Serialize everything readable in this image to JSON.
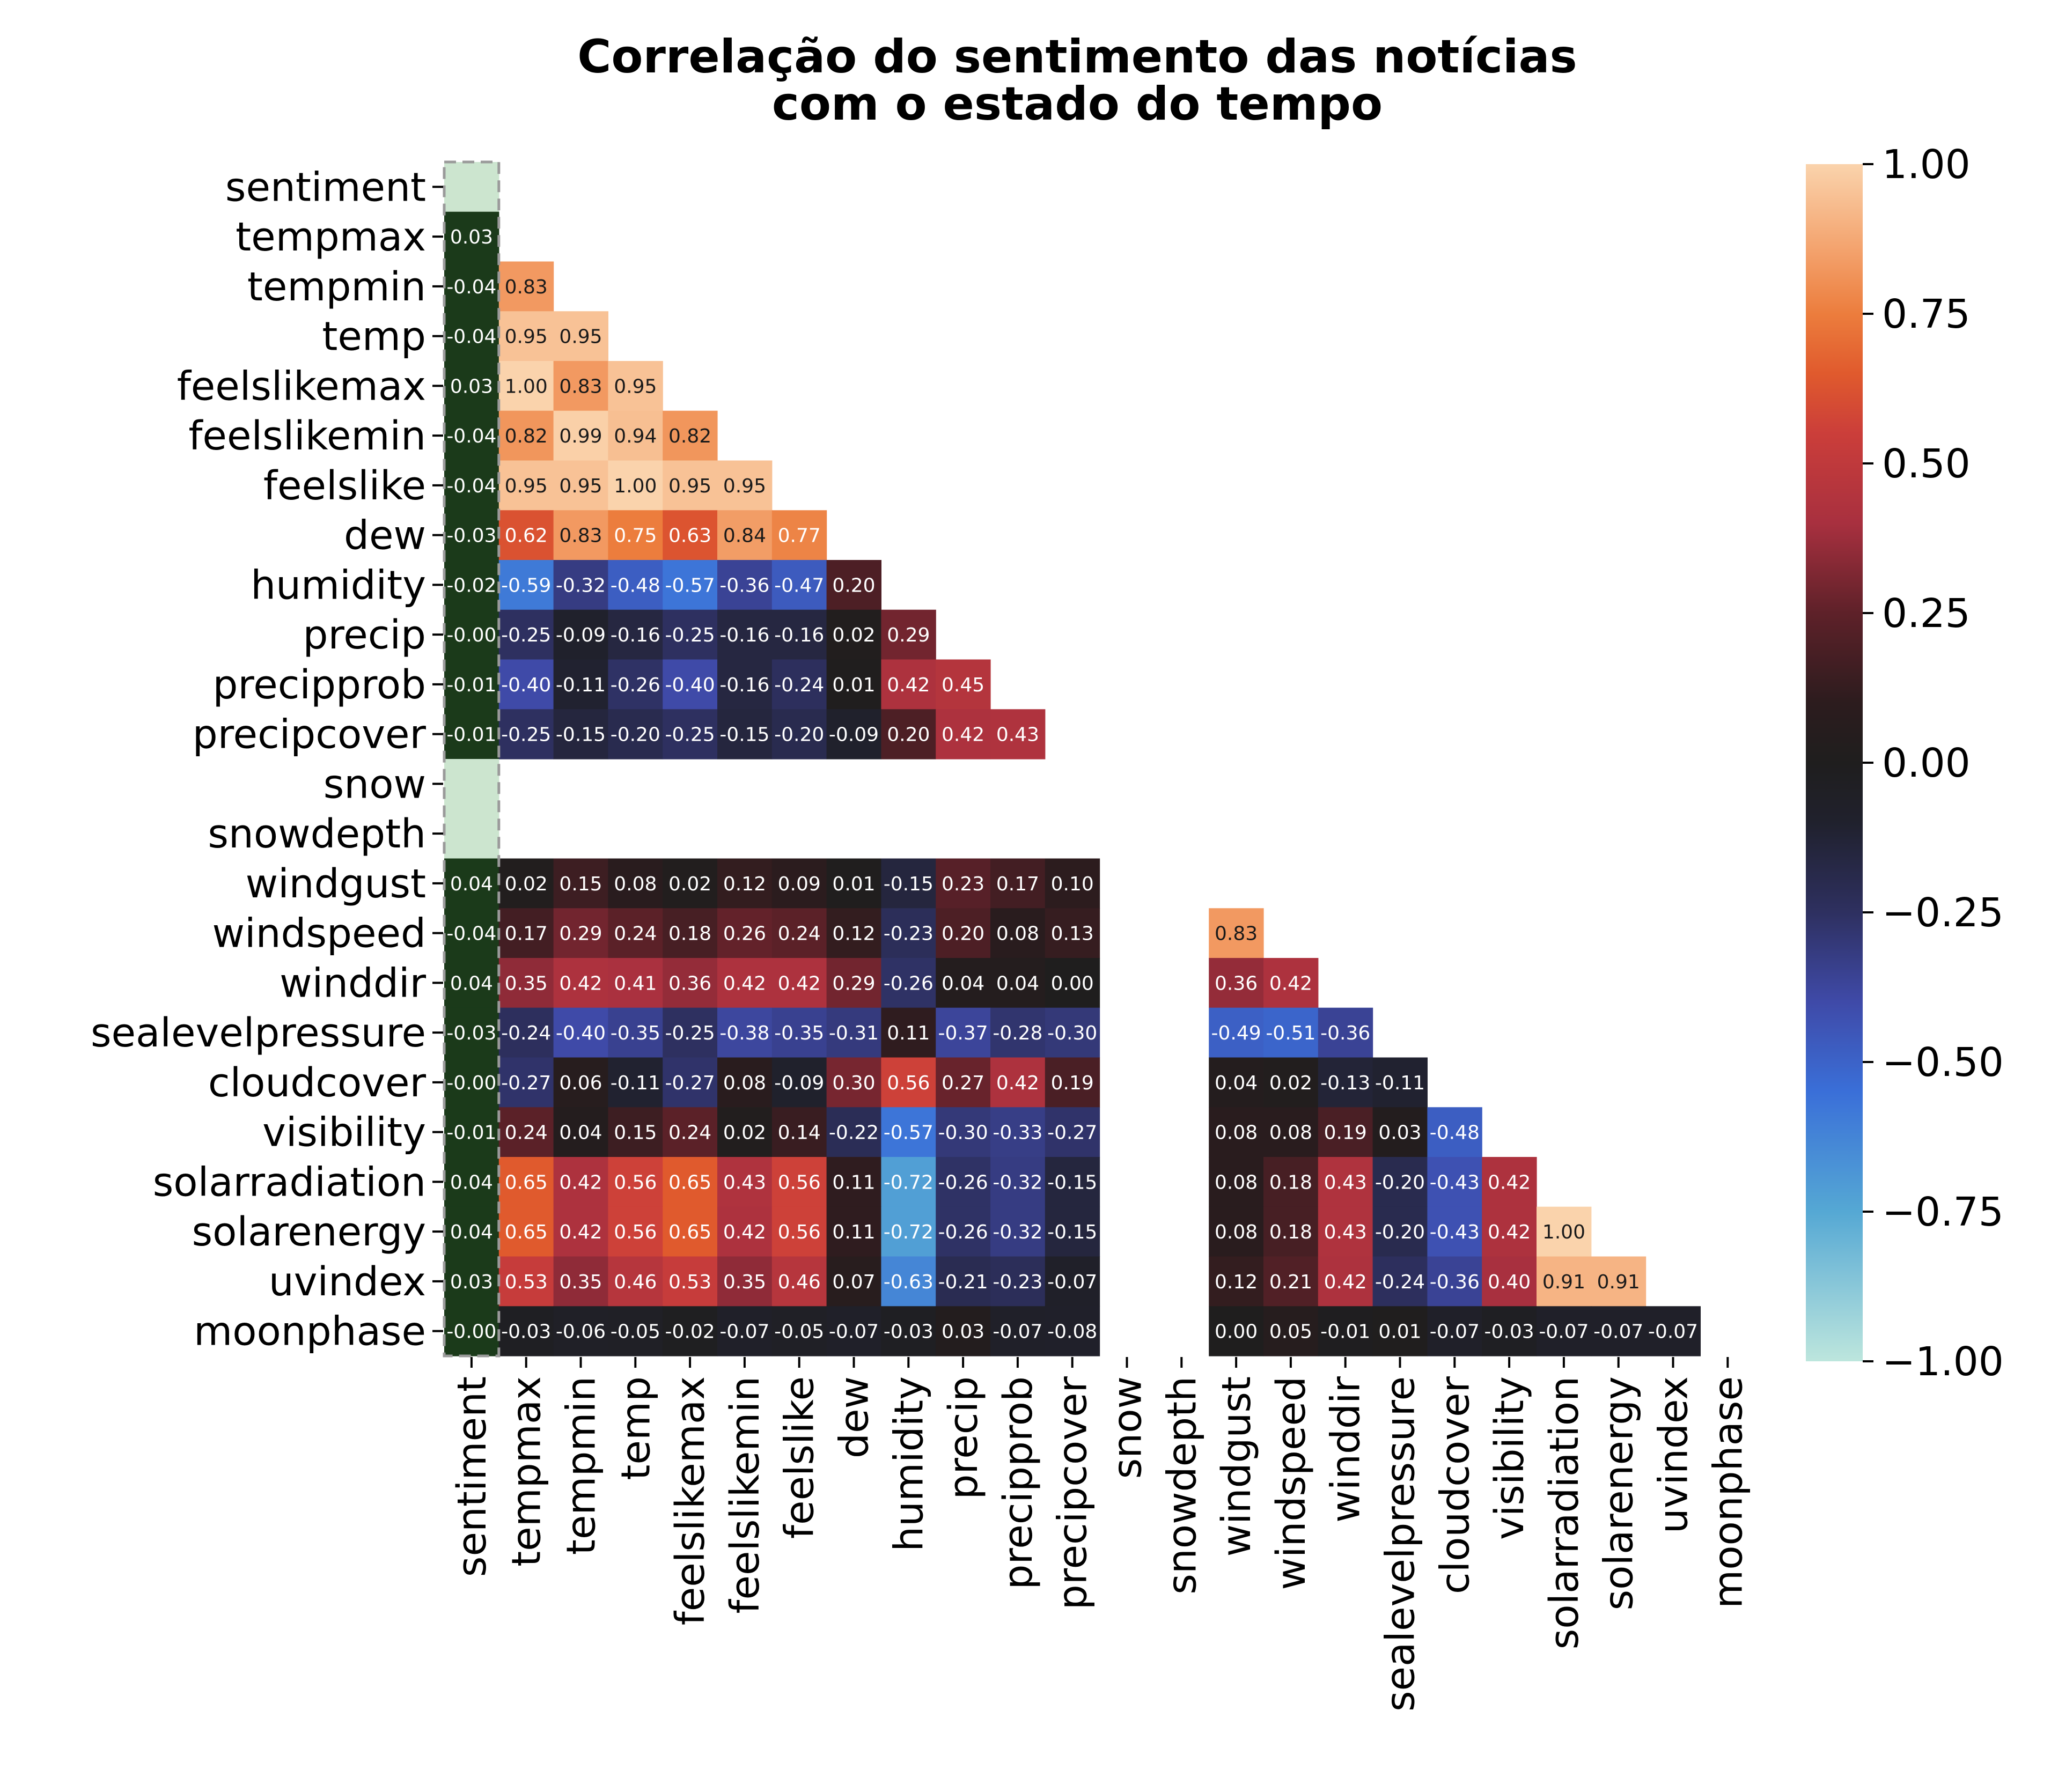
{
  "chart_data": {
    "type": "heatmap",
    "title": "Correlação do sentimento das notícias\ncom o estado do tempo",
    "variables": [
      "sentiment",
      "tempmax",
      "tempmin",
      "temp",
      "feelslikemax",
      "feelslikemin",
      "feelslike",
      "dew",
      "humidity",
      "precip",
      "precipprob",
      "precipcover",
      "snow",
      "snowdepth",
      "windgust",
      "windspeed",
      "winddir",
      "sealevelpressure",
      "cloudcover",
      "visibility",
      "solarradiation",
      "solarenergy",
      "uvindex",
      "moonphase"
    ],
    "missing": [
      "snow",
      "snowdepth"
    ],
    "highlight_column": "sentiment",
    "highlight_color": "#1b3a1a",
    "highlight_empty_color": "#cce5cf",
    "value_range": [
      -1.0,
      1.0
    ],
    "cell_value_format": "2 decimals",
    "lower_triangle": [
      [],
      [
        0.03
      ],
      [
        -0.04,
        0.83
      ],
      [
        -0.04,
        0.95,
        0.95
      ],
      [
        0.03,
        1.0,
        0.83,
        0.95
      ],
      [
        -0.04,
        0.82,
        0.99,
        0.94,
        0.82
      ],
      [
        -0.04,
        0.95,
        0.95,
        1.0,
        0.95,
        0.95
      ],
      [
        -0.03,
        0.62,
        0.83,
        0.75,
        0.63,
        0.84,
        0.77
      ],
      [
        -0.02,
        -0.59,
        -0.32,
        -0.48,
        -0.57,
        -0.36,
        -0.47,
        0.2
      ],
      [
        -0.0,
        -0.25,
        -0.09,
        -0.16,
        -0.25,
        -0.16,
        -0.16,
        0.02,
        0.29
      ],
      [
        -0.01,
        -0.4,
        -0.11,
        -0.26,
        -0.4,
        -0.16,
        -0.24,
        0.01,
        0.42,
        0.45
      ],
      [
        -0.01,
        -0.25,
        -0.15,
        -0.2,
        -0.25,
        -0.15,
        -0.2,
        -0.09,
        0.2,
        0.42,
        0.43
      ],
      [
        null,
        null,
        null,
        null,
        null,
        null,
        null,
        null,
        null,
        null,
        null,
        null
      ],
      [
        null,
        null,
        null,
        null,
        null,
        null,
        null,
        null,
        null,
        null,
        null,
        null,
        null
      ],
      [
        0.04,
        0.02,
        0.15,
        0.08,
        0.02,
        0.12,
        0.09,
        0.01,
        -0.15,
        0.23,
        0.17,
        0.1,
        null,
        null
      ],
      [
        -0.04,
        0.17,
        0.29,
        0.24,
        0.18,
        0.26,
        0.24,
        0.12,
        -0.23,
        0.2,
        0.08,
        0.13,
        null,
        null,
        0.83
      ],
      [
        0.04,
        0.35,
        0.42,
        0.41,
        0.36,
        0.42,
        0.42,
        0.29,
        -0.26,
        0.04,
        0.04,
        0.0,
        null,
        null,
        0.36,
        0.42
      ],
      [
        -0.03,
        -0.24,
        -0.4,
        -0.35,
        -0.25,
        -0.38,
        -0.35,
        -0.31,
        0.11,
        -0.37,
        -0.28,
        -0.3,
        null,
        null,
        -0.49,
        -0.51,
        -0.36
      ],
      [
        -0.0,
        -0.27,
        0.06,
        -0.11,
        -0.27,
        0.08,
        -0.09,
        0.3,
        0.56,
        0.27,
        0.42,
        0.19,
        null,
        null,
        0.04,
        0.02,
        -0.13,
        -0.11
      ],
      [
        -0.01,
        0.24,
        0.04,
        0.15,
        0.24,
        0.02,
        0.14,
        -0.22,
        -0.57,
        -0.3,
        -0.33,
        -0.27,
        null,
        null,
        0.08,
        0.08,
        0.19,
        0.03,
        -0.48
      ],
      [
        0.04,
        0.65,
        0.42,
        0.56,
        0.65,
        0.43,
        0.56,
        0.11,
        -0.72,
        -0.26,
        -0.32,
        -0.15,
        null,
        null,
        0.08,
        0.18,
        0.43,
        -0.2,
        -0.43,
        0.42
      ],
      [
        0.04,
        0.65,
        0.42,
        0.56,
        0.65,
        0.42,
        0.56,
        0.11,
        -0.72,
        -0.26,
        -0.32,
        -0.15,
        null,
        null,
        0.08,
        0.18,
        0.43,
        -0.2,
        -0.43,
        0.42,
        1.0
      ],
      [
        0.03,
        0.53,
        0.35,
        0.46,
        0.53,
        0.35,
        0.46,
        0.07,
        -0.63,
        -0.21,
        -0.23,
        -0.07,
        null,
        null,
        0.12,
        0.21,
        0.42,
        -0.24,
        -0.36,
        0.4,
        0.91,
        0.91
      ],
      [
        -0.0,
        -0.03,
        -0.06,
        -0.05,
        -0.02,
        -0.07,
        -0.05,
        -0.07,
        -0.03,
        0.03,
        -0.07,
        -0.08,
        null,
        null,
        0.0,
        0.05,
        -0.01,
        0.01,
        -0.07,
        -0.03,
        -0.07,
        -0.07,
        -0.07
      ]
    ],
    "colorbar": {
      "range": [
        -1.0,
        1.0
      ],
      "ticks": [
        1.0,
        0.75,
        0.5,
        0.25,
        0.0,
        -0.25,
        -0.5,
        -0.75,
        -1.0
      ],
      "tick_labels": [
        "1.00",
        "0.75",
        "0.50",
        "0.25",
        "0.00",
        "−0.25",
        "−0.50",
        "−0.75",
        "−1.00"
      ],
      "colormap": "icefire",
      "stops": [
        [
          -1.0,
          "#bde6dd"
        ],
        [
          -0.75,
          "#55a8d4"
        ],
        [
          -0.55,
          "#3a6fd8"
        ],
        [
          -0.4,
          "#3f4aa8"
        ],
        [
          -0.25,
          "#2e3060"
        ],
        [
          -0.1,
          "#20212d"
        ],
        [
          0.0,
          "#1f1e1e"
        ],
        [
          0.1,
          "#2c1c1e"
        ],
        [
          0.25,
          "#5e2129"
        ],
        [
          0.4,
          "#a8303f"
        ],
        [
          0.55,
          "#cb3e3a"
        ],
        [
          0.65,
          "#e05a2d"
        ],
        [
          0.75,
          "#ec7d3d"
        ],
        [
          0.85,
          "#f3a06a"
        ],
        [
          1.0,
          "#fad3ac"
        ]
      ]
    }
  }
}
